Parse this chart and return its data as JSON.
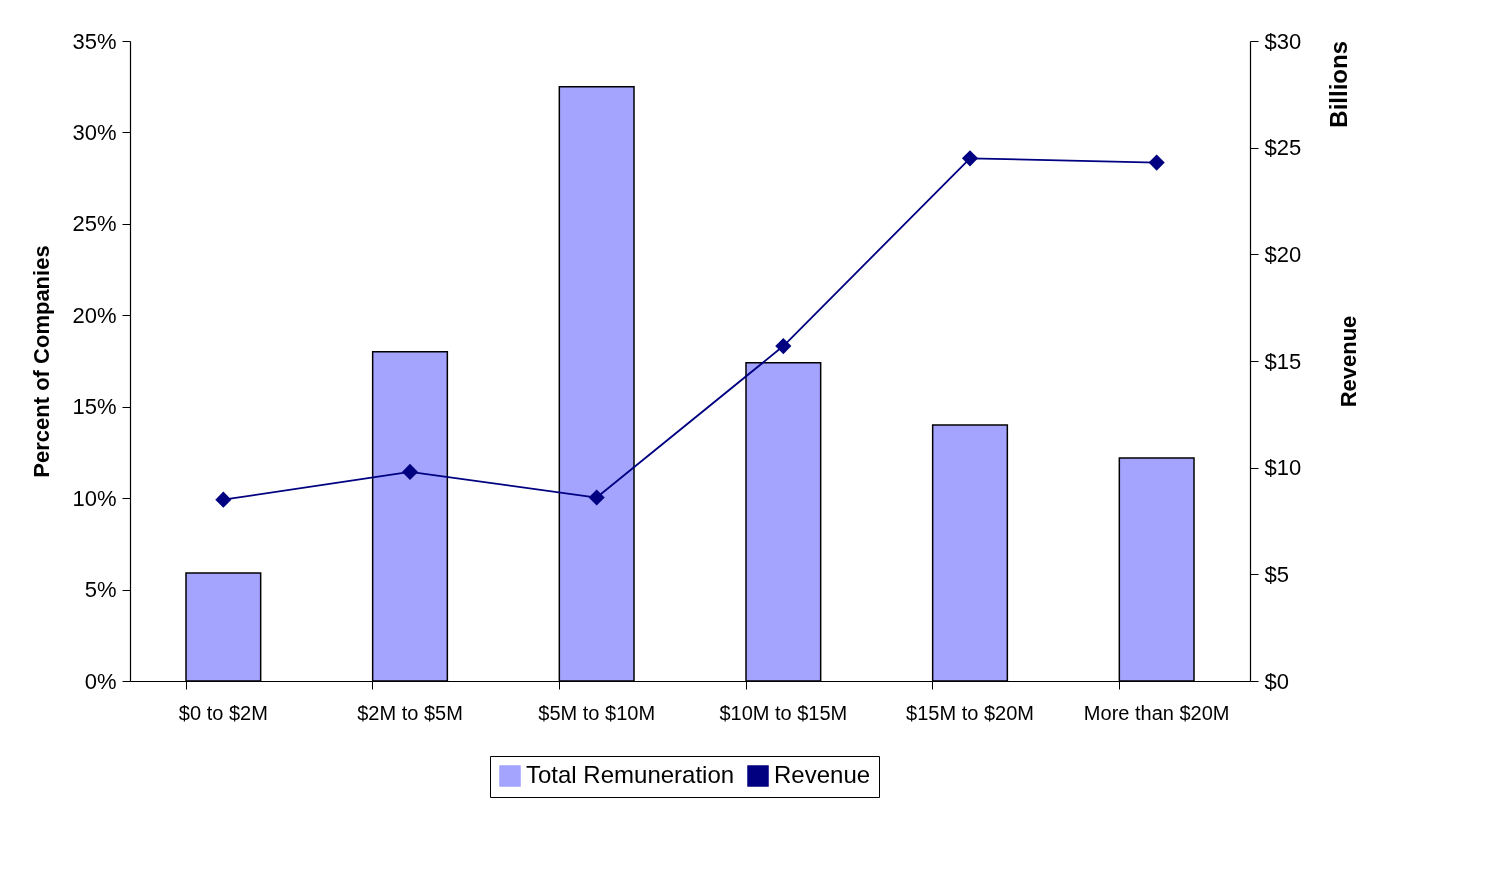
{
  "chart_data": {
    "type": "bar",
    "categories": [
      "$0 to $2M",
      "$2M to $5M",
      "$5M to $10M",
      "$10M to $15M",
      "$15M to $20M",
      "More than $20M"
    ],
    "series": [
      {
        "name": "Total Remuneration",
        "color": "#a4a4ff",
        "values": [
          5.9,
          18.0,
          32.5,
          17.4,
          14.0,
          12.2
        ]
      },
      {
        "name": "Revenue",
        "type": "line",
        "axis": "y2",
        "color": "#000080",
        "marker": "diamond",
        "values": [
          8.5,
          9.8,
          8.6,
          15.7,
          24.5,
          24.3
        ]
      }
    ],
    "ylabel": "Percent of Companies",
    "y2label": "Revenue",
    "annotations": [
      "Billions"
    ],
    "ylim": [
      0,
      35
    ],
    "yticks": [
      {
        "value": 0,
        "label": "0%"
      },
      {
        "value": 5,
        "label": "5%"
      },
      {
        "value": 10,
        "label": "10%"
      },
      {
        "value": 15,
        "label": "15%"
      },
      {
        "value": 20,
        "label": "20%"
      },
      {
        "value": 25,
        "label": "25%"
      },
      {
        "value": 30,
        "label": "30%"
      },
      {
        "value": 35,
        "label": "35%"
      }
    ],
    "y2lim": [
      0,
      30
    ],
    "y2ticks": [
      {
        "value": 0,
        "label": "$0"
      },
      {
        "value": 5,
        "label": "$5"
      },
      {
        "value": 10,
        "label": "$10"
      },
      {
        "value": 15,
        "label": "$15"
      },
      {
        "value": 20,
        "label": "$20"
      },
      {
        "value": 25,
        "label": "$25"
      },
      {
        "value": 30,
        "label": "$30"
      }
    ],
    "grid": false,
    "legend": "bottom"
  }
}
